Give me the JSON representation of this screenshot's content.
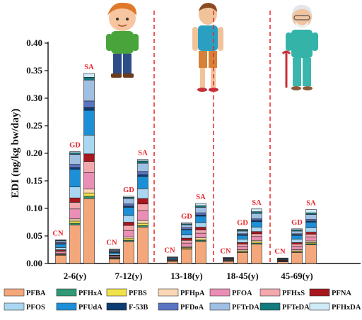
{
  "chart_data": {
    "type": "bar",
    "stacked": true,
    "ylabel": "EDI (ng/kg bw/day)",
    "ylim": [
      0,
      0.4
    ],
    "yticks": [
      "0.00",
      "0.05",
      "0.10",
      "0.15",
      "0.20",
      "0.25",
      "0.30",
      "0.35",
      "0.40"
    ],
    "categories": [
      "2-6(y)",
      "7-12(y)",
      "13-18(y)",
      "18-45(y)",
      "45-69(y)"
    ],
    "bar_labels": [
      "CN",
      "GD",
      "SA"
    ],
    "bar_label_color": "#e8262c",
    "separator_color": "#e8262c",
    "series": [
      {
        "name": "PFBA",
        "color": "#f4a77a",
        "values": [
          [
            0.015,
            0.07,
            0.118
          ],
          [
            0.008,
            0.04,
            0.066
          ],
          [
            0.004,
            0.026,
            0.04
          ],
          [
            0.004,
            0.02,
            0.035
          ],
          [
            0.003,
            0.02,
            0.034
          ]
        ]
      },
      {
        "name": "PFHxA",
        "color": "#2f9a74",
        "values": [
          [
            0.001,
            0.003,
            0.004
          ],
          [
            0.001,
            0.002,
            0.003
          ],
          [
            0.0,
            0.001,
            0.002
          ],
          [
            0.0,
            0.001,
            0.002
          ],
          [
            0.0,
            0.001,
            0.002
          ]
        ]
      },
      {
        "name": "PFBS",
        "color": "#f2e24a",
        "values": [
          [
            0.001,
            0.004,
            0.006
          ],
          [
            0.001,
            0.003,
            0.004
          ],
          [
            0.0,
            0.002,
            0.002
          ],
          [
            0.0,
            0.002,
            0.002
          ],
          [
            0.0,
            0.002,
            0.002
          ]
        ]
      },
      {
        "name": "PFHpA",
        "color": "#fbd7b5",
        "values": [
          [
            0.001,
            0.004,
            0.007
          ],
          [
            0.001,
            0.003,
            0.005
          ],
          [
            0.0,
            0.002,
            0.003
          ],
          [
            0.0,
            0.002,
            0.003
          ],
          [
            0.0,
            0.002,
            0.003
          ]
        ]
      },
      {
        "name": "PFOA",
        "color": "#ea8eb5",
        "values": [
          [
            0.003,
            0.018,
            0.03
          ],
          [
            0.002,
            0.012,
            0.018
          ],
          [
            0.001,
            0.006,
            0.008
          ],
          [
            0.001,
            0.006,
            0.007
          ],
          [
            0.001,
            0.006,
            0.007
          ]
        ]
      },
      {
        "name": "PFHxS",
        "color": "#f3a8ae",
        "values": [
          [
            0.002,
            0.012,
            0.02
          ],
          [
            0.001,
            0.009,
            0.012
          ],
          [
            0.001,
            0.005,
            0.006
          ],
          [
            0.001,
            0.004,
            0.005
          ],
          [
            0.001,
            0.004,
            0.005
          ]
        ]
      },
      {
        "name": "PFNA",
        "color": "#a8161e",
        "values": [
          [
            0.002,
            0.008,
            0.014
          ],
          [
            0.001,
            0.006,
            0.01
          ],
          [
            0.001,
            0.004,
            0.005
          ],
          [
            0.001,
            0.003,
            0.004
          ],
          [
            0.001,
            0.003,
            0.004
          ]
        ]
      },
      {
        "name": "PFOS",
        "color": "#a9d6f0",
        "values": [
          [
            0.004,
            0.02,
            0.034
          ],
          [
            0.002,
            0.012,
            0.018
          ],
          [
            0.001,
            0.006,
            0.008
          ],
          [
            0.001,
            0.006,
            0.008
          ],
          [
            0.001,
            0.006,
            0.008
          ]
        ]
      },
      {
        "name": "PFUdA",
        "color": "#1d8fd6",
        "values": [
          [
            0.006,
            0.032,
            0.045
          ],
          [
            0.003,
            0.015,
            0.022
          ],
          [
            0.002,
            0.009,
            0.012
          ],
          [
            0.001,
            0.007,
            0.01
          ],
          [
            0.001,
            0.007,
            0.01
          ]
        ]
      },
      {
        "name": "F-53B",
        "color": "#0d3c73",
        "values": [
          [
            0.001,
            0.003,
            0.005
          ],
          [
            0.001,
            0.002,
            0.003
          ],
          [
            0.0,
            0.001,
            0.002
          ],
          [
            0.0,
            0.001,
            0.002
          ],
          [
            0.0,
            0.001,
            0.002
          ]
        ]
      },
      {
        "name": "PFDoA",
        "color": "#5a73c2",
        "values": [
          [
            0.002,
            0.006,
            0.012
          ],
          [
            0.001,
            0.004,
            0.006
          ],
          [
            0.001,
            0.003,
            0.004
          ],
          [
            0.001,
            0.002,
            0.003
          ],
          [
            0.001,
            0.002,
            0.003
          ]
        ]
      },
      {
        "name": "PFTrDA",
        "color": "#9fbfe3",
        "values": [
          [
            0.003,
            0.018,
            0.038
          ],
          [
            0.002,
            0.01,
            0.015
          ],
          [
            0.001,
            0.005,
            0.01
          ],
          [
            0.001,
            0.005,
            0.01
          ],
          [
            0.001,
            0.005,
            0.009
          ]
        ]
      },
      {
        "name": "PFTeDA",
        "color": "#137a7e",
        "values": [
          [
            0.001,
            0.003,
            0.005
          ],
          [
            0.001,
            0.002,
            0.004
          ],
          [
            0.0,
            0.002,
            0.003
          ],
          [
            0.0,
            0.002,
            0.003
          ],
          [
            0.0,
            0.002,
            0.003
          ]
        ]
      },
      {
        "name": "PFHxDA",
        "color": "#cdeaf6",
        "values": [
          [
            0.001,
            0.002,
            0.007
          ],
          [
            0.001,
            0.002,
            0.003
          ],
          [
            0.0,
            0.002,
            0.004
          ],
          [
            0.0,
            0.001,
            0.005
          ],
          [
            0.0,
            0.002,
            0.006
          ]
        ]
      }
    ],
    "legend": "bottom"
  },
  "illustrations": [
    "child-figure",
    "adult-figure",
    "elderly-figure"
  ]
}
